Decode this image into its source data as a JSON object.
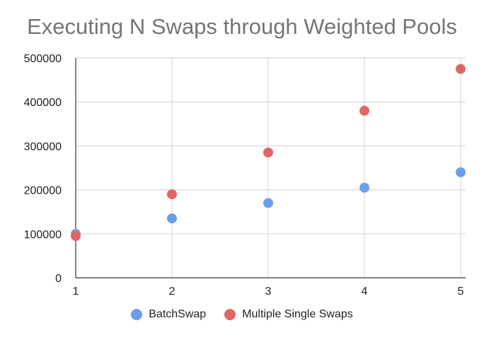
{
  "chart_data": {
    "type": "scatter",
    "title": "Executing N Swaps through Weighted Pools",
    "xlabel": "",
    "ylabel": "",
    "x": [
      1,
      2,
      3,
      4,
      5
    ],
    "xlim": [
      1,
      5
    ],
    "ylim": [
      0,
      500000
    ],
    "x_ticks": [
      "1",
      "2",
      "3",
      "4",
      "5"
    ],
    "y_ticks": [
      "0",
      "100000",
      "200000",
      "300000",
      "400000",
      "500000"
    ],
    "grid": true,
    "legend_position": "bottom",
    "series": [
      {
        "name": "BatchSwap",
        "color": "#6d9eeb",
        "values": [
          100000,
          135000,
          170000,
          205000,
          240000
        ]
      },
      {
        "name": "Multiple Single Swaps",
        "color": "#e06666",
        "values": [
          95000,
          190000,
          285000,
          380000,
          475000
        ]
      }
    ]
  }
}
